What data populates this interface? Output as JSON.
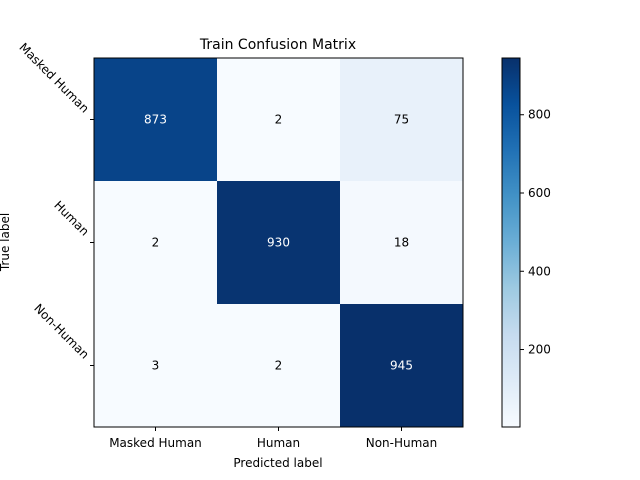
{
  "chart_data": {
    "type": "heatmap",
    "title": "Train Confusion Matrix",
    "xlabel": "Predicted label",
    "ylabel": "True label",
    "x_categories": [
      "Masked Human",
      "Human",
      "Non-Human"
    ],
    "y_categories": [
      "Masked Human",
      "Human",
      "Non-Human"
    ],
    "values": [
      [
        873,
        2,
        75
      ],
      [
        2,
        930,
        18
      ],
      [
        3,
        2,
        945
      ]
    ],
    "colormap": "Blues",
    "vmin": 2,
    "vmax": 945,
    "colorbar_ticks": [
      200,
      400,
      600,
      800
    ],
    "colorbar_tick_labels": [
      "200",
      "400",
      "600",
      "800"
    ],
    "grid": false,
    "legend": "none"
  }
}
